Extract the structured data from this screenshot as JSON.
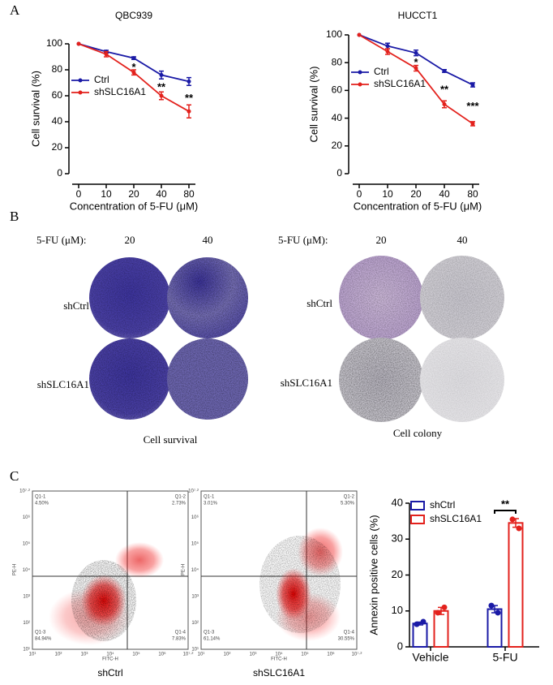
{
  "panel_labels": [
    "A",
    "B",
    "C"
  ],
  "chart_data": [
    {
      "type": "line",
      "title": "QBC939",
      "x_label": "Concentration of 5-FU (μM)",
      "y_label": "Cell survival (%)",
      "categories": [
        "0",
        "10",
        "20",
        "40",
        "80"
      ],
      "series": [
        {
          "name": "Ctrl",
          "color": "#1a1aa6",
          "values": [
            100,
            94,
            89,
            76,
            71
          ],
          "errors": [
            0,
            1,
            1,
            3,
            3
          ]
        },
        {
          "name": "shSLC16A1",
          "color": "#e3211c",
          "values": [
            100,
            92,
            78,
            60,
            48
          ],
          "errors": [
            0,
            2,
            2,
            3,
            5
          ]
        }
      ],
      "ylim": [
        0,
        100
      ],
      "yticks": [
        0,
        20,
        40,
        60,
        80,
        100
      ],
      "annotations": [
        {
          "text": "*",
          "x": "20"
        },
        {
          "text": "**",
          "x": "40"
        },
        {
          "text": "**",
          "x": "80"
        }
      ]
    },
    {
      "type": "line",
      "title": "HUCCT1",
      "x_label": "Concentration of 5-FU (μM)",
      "y_label": "Cell survival (%)",
      "categories": [
        "0",
        "10",
        "20",
        "40",
        "80"
      ],
      "series": [
        {
          "name": "Ctrl",
          "color": "#1a1aa6",
          "values": [
            100,
            92,
            87,
            74,
            64
          ],
          "errors": [
            0,
            2,
            2,
            1,
            1.5
          ]
        },
        {
          "name": "shSLC16A1",
          "color": "#e3211c",
          "values": [
            100,
            88,
            76,
            50,
            36
          ],
          "errors": [
            0,
            2,
            2,
            2.5,
            1.5
          ]
        }
      ],
      "ylim": [
        0,
        100
      ],
      "yticks": [
        0,
        20,
        40,
        60,
        80,
        100
      ],
      "annotations": [
        {
          "text": "*",
          "x": "20"
        },
        {
          "text": "**",
          "x": "40"
        },
        {
          "text": "***",
          "x": "80"
        }
      ]
    },
    {
      "type": "bar",
      "y_label": "Annexin positive cells (%)",
      "categories": [
        "Vehicle",
        "5-FU"
      ],
      "series": [
        {
          "name": "shCtrl",
          "color": "#1a1aa6",
          "values": [
            6.5,
            10.5
          ],
          "errors": [
            0.4,
            1
          ],
          "points": [
            [
              6.3,
              7
            ],
            [
              11.5,
              9.5
            ]
          ]
        },
        {
          "name": "shSLC16A1",
          "color": "#e3211c",
          "values": [
            10,
            34.5
          ],
          "errors": [
            1,
            1.2
          ],
          "points": [
            [
              9.5,
              11
            ],
            [
              35.5,
              33
            ]
          ]
        }
      ],
      "ylim": [
        0,
        40
      ],
      "yticks": [
        0,
        10,
        20,
        30,
        40
      ],
      "significance": {
        "text": "**",
        "x": "5-FU"
      }
    }
  ],
  "plate_groups": [
    {
      "dose_label": "5-FU (μM):",
      "doses": [
        "20",
        "40"
      ],
      "rows": [
        "shCtrl",
        "shSLC16A1"
      ],
      "caption": "Cell survival"
    },
    {
      "dose_label": "5-FU (μM):",
      "doses": [
        "20",
        "40"
      ],
      "rows": [
        "shCtrl",
        "shSLC16A1"
      ],
      "caption": "Cell colony"
    }
  ],
  "flow": [
    {
      "caption": "shCtrl",
      "x_label": "FITC-H",
      "y_label": "PE-H",
      "quadrants": [
        {
          "name": "Q1-1",
          "value": "4.50%"
        },
        {
          "name": "Q1-2",
          "value": "2.73%"
        },
        {
          "name": "Q1-3",
          "value": "84.94%"
        },
        {
          "name": "Q1-4",
          "value": "7.83%"
        }
      ],
      "ticks": [
        "10¹",
        "10²",
        "10³",
        "10⁴",
        "10⁵",
        "10⁶",
        "10⁷·²"
      ]
    },
    {
      "caption": "shSLC16A1",
      "x_label": "FITC-H",
      "y_label": "PE-H",
      "quadrants": [
        {
          "name": "Q1-1",
          "value": "3.01%"
        },
        {
          "name": "Q1-2",
          "value": "5.30%"
        },
        {
          "name": "Q1-3",
          "value": "61.14%"
        },
        {
          "name": "Q1-4",
          "value": "30.55%"
        }
      ],
      "ticks": [
        "10¹",
        "10²",
        "10³",
        "10⁴",
        "10⁵",
        "10⁶",
        "10⁷·²"
      ]
    }
  ]
}
